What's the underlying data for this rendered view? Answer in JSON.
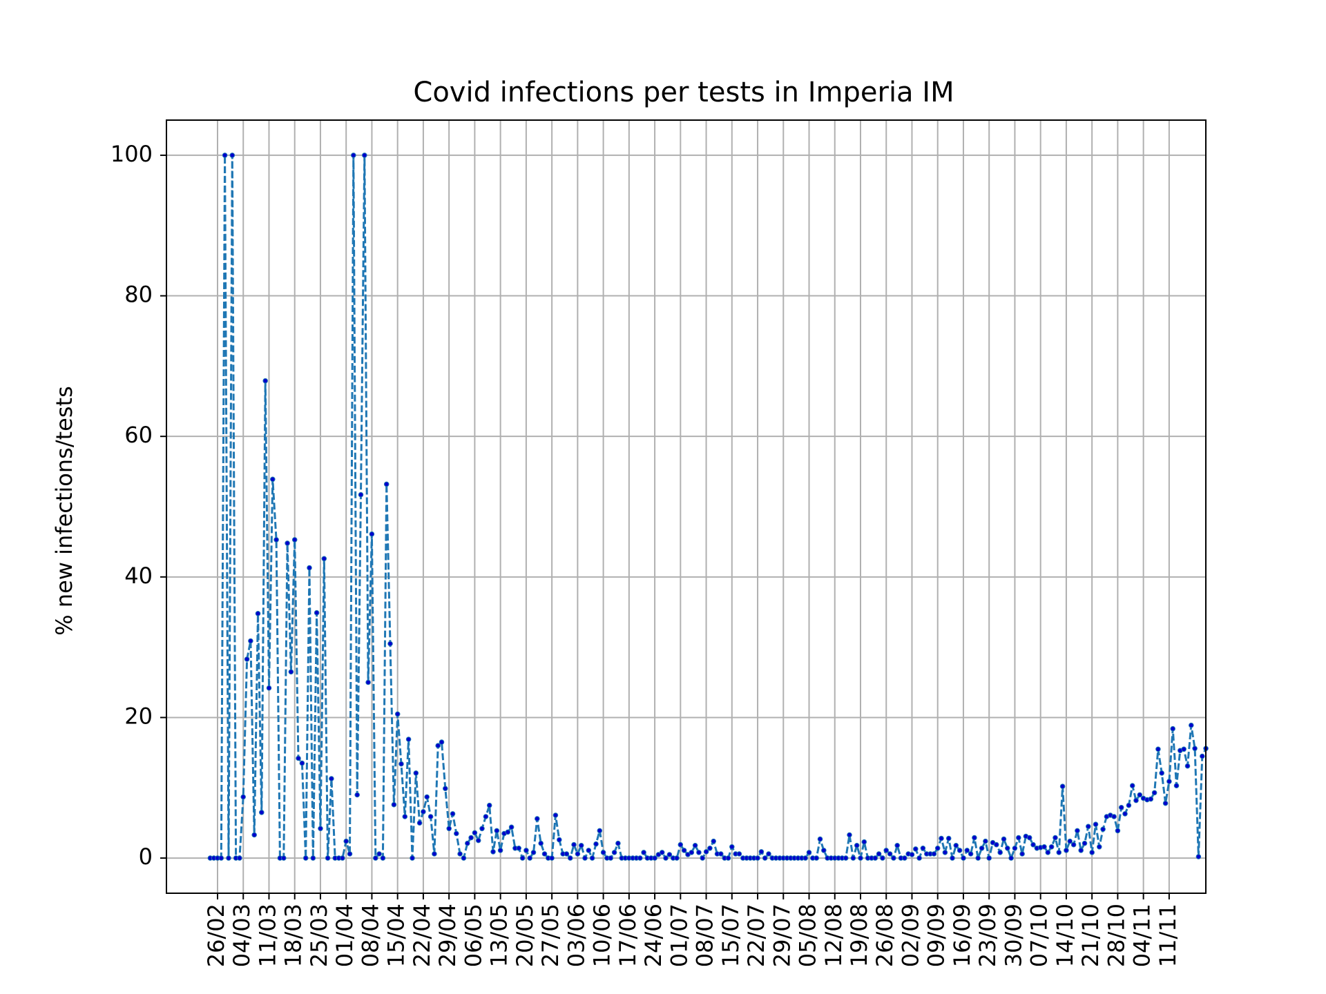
{
  "chart_data": {
    "type": "line",
    "title": "Covid infections per tests in Imperia IM",
    "xlabel": "",
    "ylabel": "% new infections/tests",
    "ylim": [
      -5,
      105
    ],
    "yticks": [
      "0",
      "20",
      "40",
      "60",
      "80",
      "100"
    ],
    "grid": true,
    "line_color": "#1f77b4",
    "marker_color": "#0000cc",
    "line_style": "dashed",
    "x_ticks": [
      "26/02",
      "04/03",
      "11/03",
      "18/03",
      "25/03",
      "01/04",
      "08/04",
      "15/04",
      "22/04",
      "29/04",
      "06/05",
      "13/05",
      "20/05",
      "27/05",
      "03/06",
      "10/06",
      "17/06",
      "24/06",
      "01/07",
      "08/07",
      "15/07",
      "22/07",
      "29/07",
      "05/08",
      "12/08",
      "19/08",
      "26/08",
      "02/09",
      "09/09",
      "16/09",
      "23/09",
      "30/09",
      "07/10",
      "14/10",
      "21/10",
      "28/10",
      "04/11",
      "11/11"
    ],
    "series": [
      {
        "start_date": "24/02",
        "values": [
          0,
          0,
          0,
          0,
          100,
          0,
          100,
          0,
          0,
          8.7,
          28.3,
          30.9,
          3.3,
          34.8,
          6.5,
          67.9,
          24.2,
          53.9,
          45.3,
          0,
          0,
          44.8,
          26.5,
          45.3,
          14.2,
          13.5,
          0,
          41.3,
          0,
          34.9,
          4.2,
          42.6,
          0,
          11.3,
          0,
          0,
          0,
          2.4,
          0.6,
          100,
          9,
          51.7,
          100,
          25,
          46.1,
          0,
          0.6,
          0,
          53.2,
          30.5,
          7.6,
          20.5,
          13.4,
          5.9,
          16.9,
          0,
          12.1,
          5,
          6.6,
          8.7,
          5.9,
          0.6,
          16,
          16.5,
          9.9,
          4.2,
          6.3,
          3.5,
          0.6,
          0,
          2.1,
          2.9,
          3.6,
          2.5,
          4.2,
          5.9,
          7.5,
          0.9,
          3.9,
          1.1,
          3.5,
          3.7,
          4.4,
          1.4,
          1.4,
          0,
          1.1,
          0,
          0.8,
          5.6,
          2.1,
          0.6,
          0,
          0,
          6.1,
          2.6,
          0.6,
          0.6,
          0,
          1.9,
          0.6,
          1.8,
          0,
          1.1,
          0,
          2,
          3.9,
          0.8,
          0,
          0,
          0.8,
          2.1,
          0,
          0,
          0,
          0,
          0,
          0,
          0.8,
          0,
          0,
          0,
          0.5,
          0.8,
          0,
          0.5,
          0,
          0,
          1.9,
          1.1,
          0.5,
          0.8,
          1.8,
          0.8,
          0,
          0.9,
          1.4,
          2.4,
          0.6,
          0.6,
          0,
          0,
          1.6,
          0.6,
          0.6,
          0,
          0,
          0,
          0,
          0,
          0.9,
          0,
          0.6,
          0,
          0,
          0,
          0,
          0,
          0,
          0,
          0,
          0,
          0,
          0.8,
          0,
          0,
          2.7,
          1.1,
          0,
          0,
          0,
          0,
          0,
          0,
          3.3,
          0,
          1.8,
          0,
          2.3,
          0,
          0,
          0,
          0.6,
          0,
          1.1,
          0.6,
          0,
          1.8,
          0,
          0,
          0.6,
          0.5,
          1.3,
          0,
          1.4,
          0.6,
          0.6,
          0.6,
          1.4,
          2.8,
          0.8,
          2.8,
          0,
          1.8,
          1.1,
          0,
          1.1,
          0.6,
          2.9,
          0,
          1.4,
          2.4,
          0,
          2.2,
          1.9,
          0.8,
          2.7,
          1.4,
          0,
          1.4,
          2.9,
          0.6,
          3.1,
          2.9,
          1.9,
          1.4,
          1.5,
          1.6,
          0.8,
          1.6,
          2.9,
          0.8,
          10.2,
          1.1,
          2.4,
          1.9,
          3.9,
          1.1,
          2.1,
          4.5,
          0.8,
          4.8,
          1.6,
          4.1,
          5.9,
          6.1,
          5.9,
          3.9,
          7.2,
          6.3,
          7.5,
          10.3,
          8.2,
          9,
          8.5,
          8.3,
          8.4,
          9.3,
          15.5,
          12.1,
          7.8,
          10.9,
          18.4,
          10.3,
          15.3,
          15.5,
          13.1,
          18.9,
          15.6,
          0.2,
          14.5,
          15.6
        ]
      }
    ]
  }
}
